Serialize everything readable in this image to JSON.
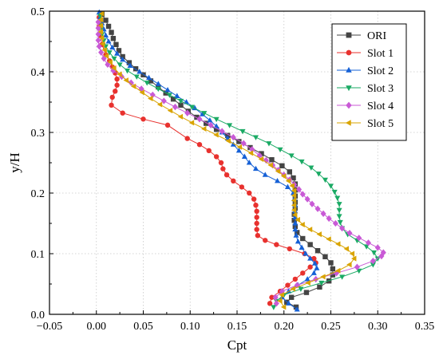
{
  "chart_data": {
    "type": "line",
    "xlabel": "Cpt",
    "ylabel": "y/H",
    "xlim": [
      -0.05,
      0.35
    ],
    "ylim": [
      0.0,
      0.5
    ],
    "xticks": [
      "−0.05",
      "0.00",
      "0.05",
      "0.10",
      "0.15",
      "0.20",
      "0.25",
      "0.30",
      "0.35"
    ],
    "yticks": [
      "0.0",
      "0.1",
      "0.2",
      "0.3",
      "0.4",
      "0.5"
    ],
    "grid": true,
    "legend_position": "top-right",
    "series": [
      {
        "name": "ORI",
        "color": "#444444",
        "marker": "square",
        "points": [
          [
            0.213,
            0.012
          ],
          [
            0.203,
            0.02
          ],
          [
            0.208,
            0.028
          ],
          [
            0.224,
            0.036
          ],
          [
            0.238,
            0.045
          ],
          [
            0.248,
            0.055
          ],
          [
            0.252,
            0.065
          ],
          [
            0.252,
            0.075
          ],
          [
            0.25,
            0.085
          ],
          [
            0.244,
            0.095
          ],
          [
            0.236,
            0.105
          ],
          [
            0.228,
            0.115
          ],
          [
            0.22,
            0.125
          ],
          [
            0.214,
            0.135
          ],
          [
            0.212,
            0.145
          ],
          [
            0.211,
            0.155
          ],
          [
            0.211,
            0.165
          ],
          [
            0.212,
            0.175
          ],
          [
            0.212,
            0.185
          ],
          [
            0.212,
            0.195
          ],
          [
            0.212,
            0.205
          ],
          [
            0.212,
            0.215
          ],
          [
            0.21,
            0.225
          ],
          [
            0.206,
            0.235
          ],
          [
            0.198,
            0.245
          ],
          [
            0.187,
            0.255
          ],
          [
            0.176,
            0.265
          ],
          [
            0.164,
            0.275
          ],
          [
            0.152,
            0.285
          ],
          [
            0.14,
            0.295
          ],
          [
            0.128,
            0.305
          ],
          [
            0.117,
            0.315
          ],
          [
            0.107,
            0.325
          ],
          [
            0.098,
            0.335
          ],
          [
            0.09,
            0.345
          ],
          [
            0.082,
            0.355
          ],
          [
            0.074,
            0.365
          ],
          [
            0.066,
            0.375
          ],
          [
            0.058,
            0.385
          ],
          [
            0.05,
            0.395
          ],
          [
            0.042,
            0.405
          ],
          [
            0.035,
            0.415
          ],
          [
            0.028,
            0.425
          ],
          [
            0.024,
            0.435
          ],
          [
            0.021,
            0.445
          ],
          [
            0.018,
            0.455
          ],
          [
            0.016,
            0.465
          ],
          [
            0.013,
            0.475
          ],
          [
            0.01,
            0.485
          ],
          [
            0.006,
            0.495
          ]
        ]
      },
      {
        "name": "Slot 1",
        "color": "#e8312e",
        "marker": "circle",
        "points": [
          [
            0.185,
            0.018
          ],
          [
            0.187,
            0.028
          ],
          [
            0.196,
            0.038
          ],
          [
            0.204,
            0.048
          ],
          [
            0.212,
            0.058
          ],
          [
            0.22,
            0.068
          ],
          [
            0.228,
            0.078
          ],
          [
            0.234,
            0.085
          ],
          [
            0.232,
            0.092
          ],
          [
            0.222,
            0.1
          ],
          [
            0.206,
            0.108
          ],
          [
            0.192,
            0.115
          ],
          [
            0.18,
            0.122
          ],
          [
            0.172,
            0.13
          ],
          [
            0.171,
            0.14
          ],
          [
            0.171,
            0.15
          ],
          [
            0.171,
            0.16
          ],
          [
            0.171,
            0.17
          ],
          [
            0.17,
            0.18
          ],
          [
            0.168,
            0.19
          ],
          [
            0.163,
            0.2
          ],
          [
            0.155,
            0.21
          ],
          [
            0.146,
            0.22
          ],
          [
            0.139,
            0.23
          ],
          [
            0.135,
            0.24
          ],
          [
            0.133,
            0.25
          ],
          [
            0.128,
            0.26
          ],
          [
            0.12,
            0.27
          ],
          [
            0.11,
            0.28
          ],
          [
            0.097,
            0.29
          ],
          [
            0.076,
            0.312
          ],
          [
            0.05,
            0.322
          ],
          [
            0.028,
            0.332
          ],
          [
            0.016,
            0.345
          ],
          [
            0.017,
            0.358
          ],
          [
            0.02,
            0.368
          ],
          [
            0.022,
            0.378
          ],
          [
            0.022,
            0.388
          ],
          [
            0.02,
            0.398
          ],
          [
            0.017,
            0.408
          ],
          [
            0.014,
            0.418
          ],
          [
            0.01,
            0.428
          ],
          [
            0.006,
            0.445
          ],
          [
            0.004,
            0.46
          ],
          [
            0.003,
            0.475
          ],
          [
            0.003,
            0.49
          ]
        ]
      },
      {
        "name": "Slot 2",
        "color": "#1560d6",
        "marker": "triangle-up",
        "points": [
          [
            0.214,
            0.008
          ],
          [
            0.205,
            0.018
          ],
          [
            0.198,
            0.028
          ],
          [
            0.205,
            0.038
          ],
          [
            0.215,
            0.048
          ],
          [
            0.225,
            0.058
          ],
          [
            0.232,
            0.068
          ],
          [
            0.235,
            0.076
          ],
          [
            0.233,
            0.084
          ],
          [
            0.228,
            0.092
          ],
          [
            0.223,
            0.1
          ],
          [
            0.219,
            0.11
          ],
          [
            0.215,
            0.12
          ],
          [
            0.213,
            0.13
          ],
          [
            0.212,
            0.14
          ],
          [
            0.212,
            0.15
          ],
          [
            0.212,
            0.16
          ],
          [
            0.212,
            0.17
          ],
          [
            0.212,
            0.18
          ],
          [
            0.211,
            0.19
          ],
          [
            0.21,
            0.2
          ],
          [
            0.204,
            0.21
          ],
          [
            0.193,
            0.22
          ],
          [
            0.18,
            0.23
          ],
          [
            0.17,
            0.24
          ],
          [
            0.163,
            0.25
          ],
          [
            0.158,
            0.26
          ],
          [
            0.152,
            0.27
          ],
          [
            0.146,
            0.28
          ],
          [
            0.14,
            0.29
          ],
          [
            0.134,
            0.3
          ],
          [
            0.128,
            0.31
          ],
          [
            0.121,
            0.32
          ],
          [
            0.113,
            0.33
          ],
          [
            0.105,
            0.34
          ],
          [
            0.096,
            0.35
          ],
          [
            0.086,
            0.36
          ],
          [
            0.076,
            0.37
          ],
          [
            0.066,
            0.38
          ],
          [
            0.056,
            0.39
          ],
          [
            0.046,
            0.4
          ],
          [
            0.036,
            0.41
          ],
          [
            0.028,
            0.42
          ],
          [
            0.022,
            0.43
          ],
          [
            0.017,
            0.44
          ],
          [
            0.013,
            0.45
          ],
          [
            0.01,
            0.46
          ],
          [
            0.008,
            0.47
          ],
          [
            0.006,
            0.48
          ],
          [
            0.004,
            0.49
          ],
          [
            0.003,
            0.498
          ]
        ]
      },
      {
        "name": "Slot 3",
        "color": "#1aaa64",
        "marker": "triangle-down",
        "points": [
          [
            0.189,
            0.012
          ],
          [
            0.192,
            0.022
          ],
          [
            0.2,
            0.032
          ],
          [
            0.218,
            0.042
          ],
          [
            0.24,
            0.052
          ],
          [
            0.262,
            0.062
          ],
          [
            0.28,
            0.072
          ],
          [
            0.295,
            0.082
          ],
          [
            0.3,
            0.092
          ],
          [
            0.296,
            0.102
          ],
          [
            0.288,
            0.112
          ],
          [
            0.278,
            0.122
          ],
          [
            0.268,
            0.132
          ],
          [
            0.262,
            0.142
          ],
          [
            0.26,
            0.152
          ],
          [
            0.259,
            0.162
          ],
          [
            0.259,
            0.172
          ],
          [
            0.259,
            0.182
          ],
          [
            0.257,
            0.192
          ],
          [
            0.254,
            0.202
          ],
          [
            0.25,
            0.212
          ],
          [
            0.244,
            0.222
          ],
          [
            0.237,
            0.232
          ],
          [
            0.229,
            0.242
          ],
          [
            0.219,
            0.252
          ],
          [
            0.208,
            0.262
          ],
          [
            0.196,
            0.272
          ],
          [
            0.184,
            0.282
          ],
          [
            0.17,
            0.292
          ],
          [
            0.156,
            0.302
          ],
          [
            0.142,
            0.312
          ],
          [
            0.128,
            0.322
          ],
          [
            0.115,
            0.332
          ],
          [
            0.102,
            0.342
          ],
          [
            0.09,
            0.352
          ],
          [
            0.078,
            0.362
          ],
          [
            0.066,
            0.372
          ],
          [
            0.054,
            0.382
          ],
          [
            0.043,
            0.392
          ],
          [
            0.033,
            0.402
          ],
          [
            0.025,
            0.412
          ],
          [
            0.019,
            0.422
          ],
          [
            0.014,
            0.432
          ],
          [
            0.01,
            0.442
          ],
          [
            0.008,
            0.452
          ],
          [
            0.006,
            0.462
          ],
          [
            0.005,
            0.472
          ],
          [
            0.004,
            0.482
          ],
          [
            0.004,
            0.492
          ]
        ]
      },
      {
        "name": "Slot 4",
        "color": "#c95ad6",
        "marker": "diamond",
        "points": [
          [
            0.192,
            0.018
          ],
          [
            0.191,
            0.028
          ],
          [
            0.198,
            0.038
          ],
          [
            0.214,
            0.048
          ],
          [
            0.234,
            0.058
          ],
          [
            0.256,
            0.068
          ],
          [
            0.278,
            0.078
          ],
          [
            0.295,
            0.088
          ],
          [
            0.304,
            0.096
          ],
          [
            0.306,
            0.102
          ],
          [
            0.3,
            0.11
          ],
          [
            0.29,
            0.118
          ],
          [
            0.28,
            0.126
          ],
          [
            0.27,
            0.134
          ],
          [
            0.262,
            0.142
          ],
          [
            0.255,
            0.15
          ],
          [
            0.248,
            0.158
          ],
          [
            0.242,
            0.166
          ],
          [
            0.236,
            0.174
          ],
          [
            0.23,
            0.182
          ],
          [
            0.225,
            0.19
          ],
          [
            0.22,
            0.198
          ],
          [
            0.216,
            0.206
          ],
          [
            0.211,
            0.214
          ],
          [
            0.206,
            0.222
          ],
          [
            0.2,
            0.23
          ],
          [
            0.194,
            0.238
          ],
          [
            0.188,
            0.246
          ],
          [
            0.181,
            0.254
          ],
          [
            0.174,
            0.262
          ],
          [
            0.166,
            0.272
          ],
          [
            0.157,
            0.282
          ],
          [
            0.146,
            0.292
          ],
          [
            0.134,
            0.302
          ],
          [
            0.122,
            0.312
          ],
          [
            0.11,
            0.322
          ],
          [
            0.097,
            0.332
          ],
          [
            0.084,
            0.342
          ],
          [
            0.072,
            0.352
          ],
          [
            0.06,
            0.362
          ],
          [
            0.048,
            0.372
          ],
          [
            0.037,
            0.382
          ],
          [
            0.027,
            0.392
          ],
          [
            0.018,
            0.402
          ],
          [
            0.012,
            0.412
          ],
          [
            0.008,
            0.422
          ],
          [
            0.005,
            0.432
          ],
          [
            0.003,
            0.442
          ],
          [
            0.002,
            0.452
          ],
          [
            0.002,
            0.462
          ],
          [
            0.002,
            0.472
          ],
          [
            0.002,
            0.482
          ]
        ]
      },
      {
        "name": "Slot 5",
        "color": "#d9a400",
        "marker": "triangle-left",
        "points": [
          [
            0.2,
            0.012
          ],
          [
            0.196,
            0.022
          ],
          [
            0.198,
            0.032
          ],
          [
            0.21,
            0.042
          ],
          [
            0.226,
            0.052
          ],
          [
            0.242,
            0.062
          ],
          [
            0.258,
            0.072
          ],
          [
            0.27,
            0.082
          ],
          [
            0.275,
            0.092
          ],
          [
            0.273,
            0.1
          ],
          [
            0.267,
            0.108
          ],
          [
            0.258,
            0.116
          ],
          [
            0.248,
            0.124
          ],
          [
            0.238,
            0.132
          ],
          [
            0.228,
            0.14
          ],
          [
            0.22,
            0.148
          ],
          [
            0.215,
            0.156
          ],
          [
            0.212,
            0.164
          ],
          [
            0.211,
            0.172
          ],
          [
            0.211,
            0.18
          ],
          [
            0.211,
            0.188
          ],
          [
            0.211,
            0.196
          ],
          [
            0.211,
            0.204
          ],
          [
            0.209,
            0.212
          ],
          [
            0.205,
            0.22
          ],
          [
            0.2,
            0.228
          ],
          [
            0.194,
            0.236
          ],
          [
            0.186,
            0.246
          ],
          [
            0.176,
            0.256
          ],
          [
            0.165,
            0.266
          ],
          [
            0.153,
            0.276
          ],
          [
            0.141,
            0.286
          ],
          [
            0.128,
            0.296
          ],
          [
            0.115,
            0.306
          ],
          [
            0.102,
            0.316
          ],
          [
            0.09,
            0.326
          ],
          [
            0.079,
            0.336
          ],
          [
            0.068,
            0.346
          ],
          [
            0.058,
            0.356
          ],
          [
            0.049,
            0.366
          ],
          [
            0.04,
            0.376
          ],
          [
            0.032,
            0.386
          ],
          [
            0.025,
            0.396
          ],
          [
            0.019,
            0.406
          ],
          [
            0.015,
            0.416
          ],
          [
            0.011,
            0.426
          ],
          [
            0.009,
            0.436
          ],
          [
            0.007,
            0.446
          ],
          [
            0.006,
            0.456
          ],
          [
            0.005,
            0.466
          ],
          [
            0.005,
            0.476
          ],
          [
            0.005,
            0.486
          ],
          [
            0.006,
            0.496
          ]
        ]
      }
    ]
  }
}
